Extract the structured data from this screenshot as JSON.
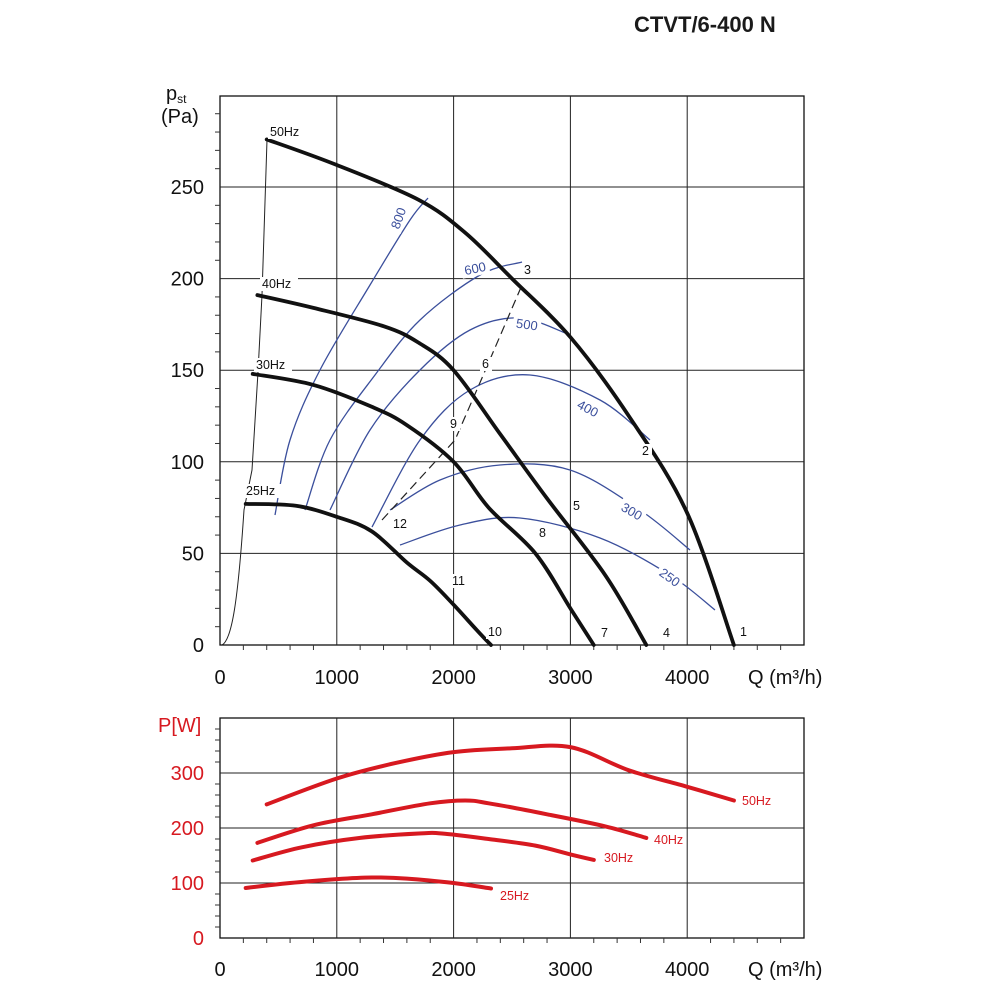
{
  "title": "CTVT/6-400 N",
  "chart_data": [
    {
      "type": "line",
      "title": "",
      "ylabel": "pst",
      "ylabel_sub": "st",
      "ylabel_main": "p",
      "yunit": "(Pa)",
      "xlabel": "Q (m³/h)",
      "xlim": [
        0,
        5000
      ],
      "ylim": [
        0,
        300
      ],
      "xticks": [
        "0",
        "1000",
        "2000",
        "3000",
        "4000"
      ],
      "yticks": [
        "0",
        "50",
        "100",
        "150",
        "200",
        "250"
      ],
      "grid": true,
      "series": [
        {
          "name": "50Hz",
          "x": [
            400,
            1000,
            1700,
            2100,
            2500,
            3000,
            3500,
            4000,
            4400
          ],
          "y": [
            276,
            262,
            243,
            225,
            200,
            168,
            125,
            72,
            0
          ]
        },
        {
          "name": "40Hz",
          "x": [
            320,
            800,
            1400,
            1700,
            2000,
            2400,
            2800,
            3300,
            3650
          ],
          "y": [
            191,
            184,
            174,
            165,
            150,
            115,
            80,
            38,
            0
          ]
        },
        {
          "name": "30Hz",
          "x": [
            280,
            800,
            1300,
            1600,
            2000,
            2300,
            2700,
            3000,
            3200
          ],
          "y": [
            148,
            142,
            130,
            120,
            100,
            75,
            50,
            20,
            0
          ]
        },
        {
          "name": "25Hz",
          "x": [
            220,
            650,
            1000,
            1300,
            1600,
            1800,
            2000,
            2200,
            2320
          ],
          "y": [
            77,
            76,
            70,
            62,
            45,
            35,
            22,
            8,
            0
          ]
        }
      ],
      "system_curves": [
        {
          "name": "800",
          "label": "800"
        },
        {
          "name": "600",
          "label": "600"
        },
        {
          "name": "500",
          "label": "500"
        },
        {
          "name": "400",
          "label": "400"
        },
        {
          "name": "300",
          "label": "300"
        },
        {
          "name": "250",
          "label": "250"
        }
      ],
      "point_labels": [
        "1",
        "2",
        "3",
        "4",
        "5",
        "6",
        "7",
        "8",
        "9",
        "10",
        "11",
        "12"
      ]
    },
    {
      "type": "line",
      "title": "",
      "ylabel": "P[W]",
      "xlabel": "Q (m³/h)",
      "xlim": [
        0,
        5000
      ],
      "ylim": [
        0,
        400
      ],
      "xticks": [
        "0",
        "1000",
        "2000",
        "3000",
        "4000"
      ],
      "yticks": [
        "0",
        "100",
        "200",
        "300"
      ],
      "grid": true,
      "color": "#d71920",
      "series": [
        {
          "name": "50Hz",
          "x": [
            400,
            1000,
            1500,
            2000,
            2500,
            3000,
            3500,
            4000,
            4400
          ],
          "y": [
            243,
            290,
            318,
            338,
            345,
            347,
            305,
            275,
            250
          ]
        },
        {
          "name": "40Hz",
          "x": [
            320,
            800,
            1300,
            1800,
            2100,
            2300,
            2800,
            3300,
            3650
          ],
          "y": [
            173,
            205,
            225,
            245,
            250,
            245,
            225,
            203,
            182
          ]
        },
        {
          "name": "30Hz",
          "x": [
            280,
            700,
            1200,
            1700,
            1900,
            2300,
            2700,
            3000,
            3200
          ],
          "y": [
            141,
            165,
            182,
            190,
            190,
            180,
            168,
            152,
            142
          ]
        },
        {
          "name": "25Hz",
          "x": [
            220,
            600,
            1000,
            1300,
            1600,
            2000,
            2320
          ],
          "y": [
            91,
            100,
            107,
            110,
            108,
            100,
            90
          ]
        }
      ]
    }
  ]
}
